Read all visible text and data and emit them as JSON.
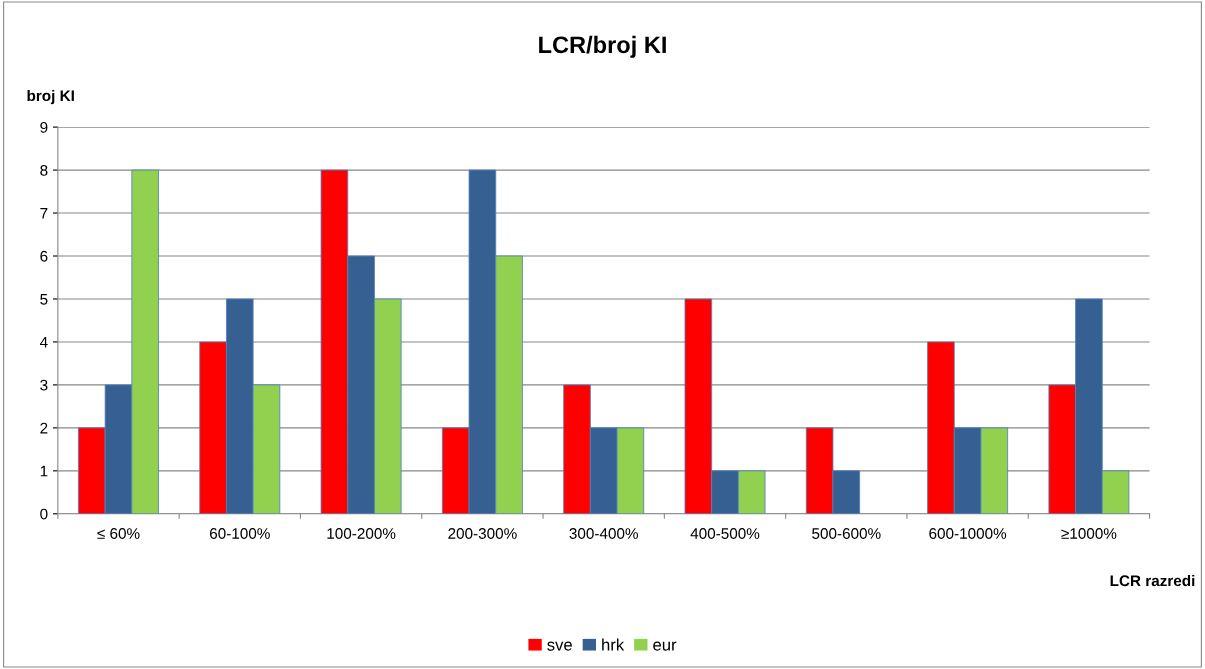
{
  "chart_data": {
    "type": "bar",
    "title": "LCR/broj KI",
    "xlabel": "LCR razredi",
    "ylabel": "broj KI",
    "categories": [
      "≤ 60%",
      "60-100%",
      "100-200%",
      "200-300%",
      "300-400%",
      "400-500%",
      "500-600%",
      "600-1000%",
      "≥1000%"
    ],
    "series": [
      {
        "name": "sve",
        "color": "#ff0000",
        "values": [
          2,
          4,
          8,
          2,
          3,
          5,
          2,
          4,
          3
        ]
      },
      {
        "name": "hrk",
        "color": "#376092",
        "values": [
          3,
          5,
          6,
          8,
          2,
          1,
          1,
          2,
          5
        ]
      },
      {
        "name": "eur",
        "color": "#92d050",
        "values": [
          8,
          3,
          5,
          6,
          2,
          1,
          0,
          2,
          1
        ]
      }
    ],
    "ylim": [
      0,
      9
    ],
    "yticks": [
      0,
      1,
      2,
      3,
      4,
      5,
      6,
      7,
      8,
      9
    ],
    "grid": "y",
    "legend": "bottom"
  }
}
